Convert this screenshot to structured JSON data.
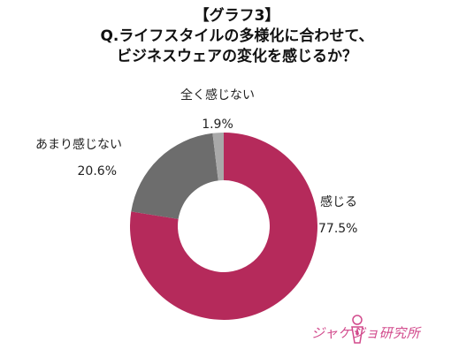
{
  "header": {
    "graph_label": "【グラフ3】",
    "question_line1": "Q.ライフスタイルの多様化に合わせて、",
    "question_line2": "ビジネスウェアの変化を感じるか？"
  },
  "chart_data": {
    "type": "pie",
    "donut": true,
    "categories": [
      "感じる",
      "あまり感じない",
      "全く感じない"
    ],
    "values": [
      77.5,
      20.6,
      1.9
    ],
    "value_labels": [
      "77.5%",
      "20.6%",
      "1.9%"
    ],
    "colors": [
      "#b52a5b",
      "#6d6d6d",
      "#a9a9a9"
    ],
    "start": "12 o'clock",
    "direction": "clockwise"
  },
  "logo": {
    "text": "ジャケジョ研究所",
    "color": "#d24a8c",
    "icon": "woman-icon"
  }
}
